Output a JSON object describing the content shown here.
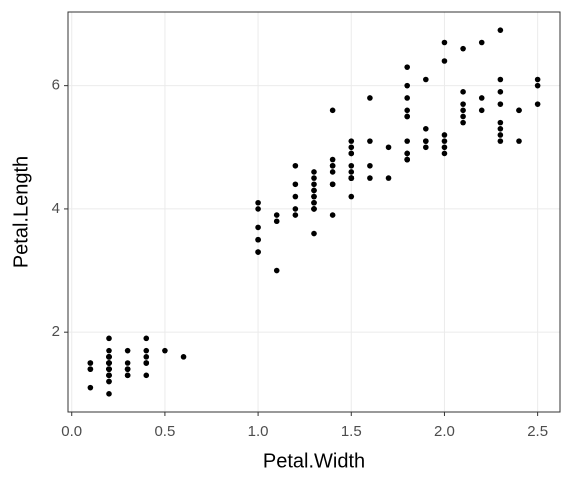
{
  "chart_data": {
    "type": "scatter",
    "x_label": "Petal.Width",
    "y_label": "Petal.Length",
    "color": "#000000",
    "grid": true,
    "xlim": [
      -0.02,
      2.62
    ],
    "ylim": [
      0.705,
      7.195
    ],
    "xticks": [
      {
        "value": 0,
        "label": "0.0"
      },
      0.5,
      {
        "value": 1,
        "label": "1.0"
      },
      1.5,
      {
        "value": 2,
        "label": "2.0"
      },
      2.5
    ],
    "yticks": [
      2,
      4,
      6
    ],
    "x": [
      0.2,
      0.2,
      0.2,
      0.2,
      0.2,
      0.4,
      0.3,
      0.2,
      0.2,
      0.1,
      0.2,
      0.2,
      0.1,
      0.1,
      0.2,
      0.4,
      0.4,
      0.3,
      0.3,
      0.3,
      0.2,
      0.4,
      0.2,
      0.5,
      0.2,
      0.2,
      0.4,
      0.2,
      0.2,
      0.2,
      0.2,
      0.4,
      0.1,
      0.2,
      0.2,
      0.2,
      0.2,
      0.1,
      0.2,
      0.2,
      0.3,
      0.3,
      0.2,
      0.6,
      0.4,
      0.3,
      0.2,
      0.2,
      0.2,
      0.2,
      1.4,
      1.5,
      1.5,
      1.3,
      1.5,
      1.3,
      1.6,
      1.0,
      1.3,
      1.4,
      1.0,
      1.5,
      1.0,
      1.4,
      1.3,
      1.4,
      1.5,
      1.0,
      1.5,
      1.1,
      1.8,
      1.3,
      1.5,
      1.2,
      1.3,
      1.4,
      1.4,
      1.7,
      1.5,
      1.0,
      1.1,
      1.0,
      1.2,
      1.6,
      1.5,
      1.6,
      1.5,
      1.3,
      1.3,
      1.3,
      1.2,
      1.4,
      1.2,
      1.0,
      1.3,
      1.2,
      1.3,
      1.3,
      1.1,
      1.3,
      2.5,
      1.9,
      2.1,
      1.8,
      2.2,
      2.1,
      1.7,
      1.8,
      1.8,
      2.5,
      2.0,
      1.9,
      2.1,
      2.0,
      2.4,
      2.3,
      1.8,
      2.2,
      2.3,
      1.5,
      2.3,
      2.0,
      2.0,
      1.8,
      2.1,
      1.8,
      1.8,
      1.8,
      2.1,
      1.6,
      1.9,
      2.0,
      2.2,
      1.5,
      1.4,
      2.3,
      2.4,
      1.8,
      1.8,
      2.1,
      2.4,
      2.3,
      1.9,
      2.3,
      2.5,
      2.3,
      1.9,
      2.0,
      2.3,
      1.8
    ],
    "values": [
      1.4,
      1.4,
      1.3,
      1.5,
      1.4,
      1.7,
      1.4,
      1.5,
      1.4,
      1.5,
      1.5,
      1.6,
      1.4,
      1.1,
      1.2,
      1.5,
      1.3,
      1.4,
      1.7,
      1.5,
      1.7,
      1.5,
      1.0,
      1.7,
      1.9,
      1.6,
      1.6,
      1.5,
      1.4,
      1.6,
      1.6,
      1.5,
      1.5,
      1.4,
      1.5,
      1.2,
      1.3,
      1.4,
      1.3,
      1.5,
      1.3,
      1.3,
      1.3,
      1.6,
      1.9,
      1.4,
      1.6,
      1.4,
      1.5,
      1.4,
      4.7,
      4.5,
      4.9,
      4.0,
      4.6,
      4.5,
      4.7,
      3.3,
      4.6,
      3.9,
      3.5,
      4.2,
      4.0,
      4.7,
      3.6,
      4.4,
      4.5,
      4.1,
      4.5,
      3.9,
      4.8,
      4.0,
      4.9,
      4.7,
      4.3,
      4.4,
      4.8,
      5.0,
      4.5,
      3.5,
      3.8,
      3.7,
      3.9,
      5.1,
      4.5,
      4.5,
      4.7,
      4.4,
      4.1,
      4.0,
      4.4,
      4.6,
      4.0,
      3.3,
      4.2,
      4.2,
      4.2,
      4.3,
      3.0,
      4.1,
      6.0,
      5.1,
      5.9,
      5.6,
      5.8,
      6.6,
      4.5,
      6.3,
      5.8,
      6.1,
      5.1,
      5.3,
      5.5,
      5.0,
      5.1,
      5.3,
      5.5,
      6.7,
      6.9,
      5.0,
      5.7,
      4.9,
      6.7,
      4.9,
      5.7,
      6.0,
      4.8,
      4.9,
      5.6,
      5.8,
      6.1,
      6.4,
      5.6,
      5.1,
      5.6,
      6.1,
      5.6,
      5.5,
      4.8,
      5.4,
      5.6,
      5.1,
      5.1,
      5.9,
      5.7,
      5.2,
      5.0,
      5.2,
      5.4,
      5.1
    ]
  }
}
